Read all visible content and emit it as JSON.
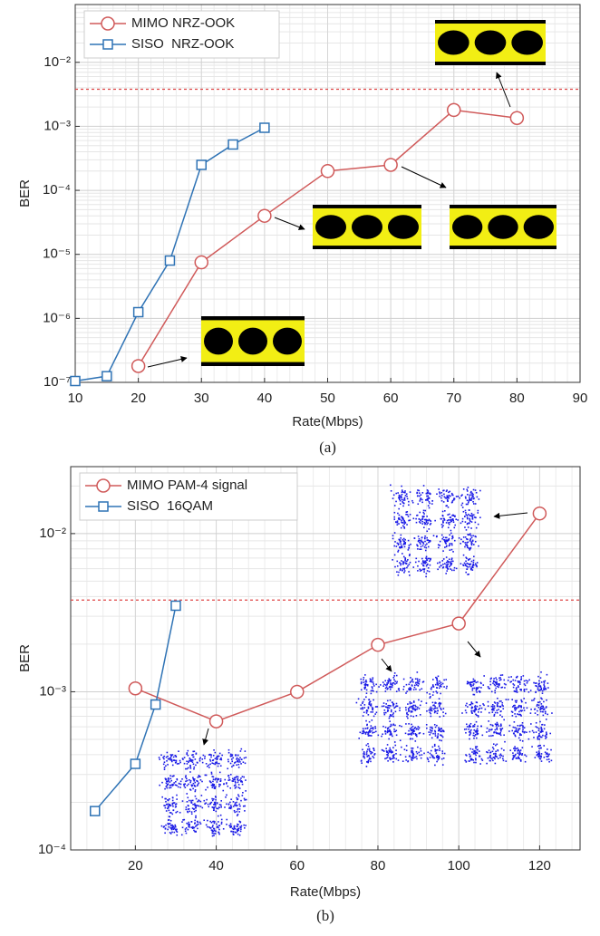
{
  "chart_data": [
    {
      "type": "line",
      "x_label": "Rate(Mbps)",
      "y_label": "BER",
      "caption": "(a)",
      "xlim": [
        10,
        90
      ],
      "xticks": [
        10,
        20,
        30,
        40,
        50,
        60,
        70,
        80,
        90
      ],
      "ylim": [
        1e-07,
        0.08
      ],
      "log_y": true,
      "yticks": [
        {
          "value": 1e-07,
          "label": "10⁻⁷"
        },
        {
          "value": 1e-06,
          "label": "10⁻⁶"
        },
        {
          "value": 1e-05,
          "label": "10⁻⁵"
        },
        {
          "value": 0.0001,
          "label": "10⁻⁴"
        },
        {
          "value": 0.001,
          "label": "10⁻³"
        },
        {
          "value": 0.01,
          "label": "10⁻²"
        }
      ],
      "grid": true,
      "minor_grid": true,
      "legend": "upper left",
      "threshold": {
        "value": 0.0038,
        "color": "#e04848"
      },
      "series": [
        {
          "name": "MIMO NRZ-OOK",
          "color": "#d05a5a",
          "marker": "circle",
          "x": [
            20,
            30,
            40,
            50,
            60,
            70,
            80
          ],
          "values": [
            1.8e-07,
            7.5e-06,
            4e-05,
            0.0002,
            0.00025,
            0.0018,
            0.00135
          ]
        },
        {
          "name": "SISO  NRZ-OOK",
          "color": "#2f73b5",
          "marker": "square",
          "x": [
            10,
            15,
            20,
            25,
            30,
            35,
            40
          ],
          "values": [
            1.05e-07,
            1.25e-07,
            1.25e-06,
            8e-06,
            0.00025,
            0.00052,
            0.00095
          ]
        }
      ]
    },
    {
      "type": "line",
      "x_label": "Rate(Mbps)",
      "y_label": "BER",
      "caption": "(b)",
      "xlim": [
        4,
        130
      ],
      "xticks": [
        20,
        40,
        60,
        80,
        100,
        120
      ],
      "ylim": [
        0.0001,
        0.0265
      ],
      "log_y": true,
      "yticks": [
        {
          "value": 0.0001,
          "label": "10⁻⁴"
        },
        {
          "value": 0.001,
          "label": "10⁻³"
        },
        {
          "value": 0.01,
          "label": "10⁻²"
        }
      ],
      "grid": true,
      "minor_grid": true,
      "legend": "upper left",
      "threshold": {
        "value": 0.0038,
        "color": "#e04848"
      },
      "series": [
        {
          "name": "MIMO PAM-4 signal",
          "color": "#d05a5a",
          "marker": "circle",
          "x": [
            20,
            40,
            60,
            80,
            100,
            120
          ],
          "values": [
            0.00105,
            0.00065,
            0.001,
            0.00198,
            0.0027,
            0.0134
          ]
        },
        {
          "name": "SISO  16QAM",
          "color": "#2f73b5",
          "marker": "square",
          "x": [
            10,
            20,
            25,
            30
          ],
          "values": [
            0.000176,
            0.00035,
            0.00083,
            0.0035
          ]
        }
      ]
    }
  ]
}
